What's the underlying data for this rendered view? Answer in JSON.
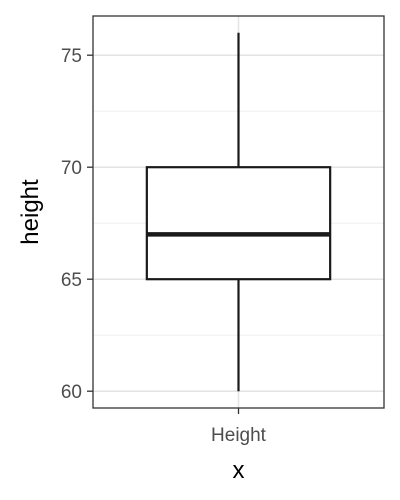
{
  "chart_data": {
    "type": "box",
    "xlabel": "x",
    "ylabel": "height",
    "categories": [
      "Height"
    ],
    "ylim": [
      59.25,
      76.75
    ],
    "yticks": [
      60,
      65,
      70,
      75
    ],
    "grid": true,
    "boxes": [
      {
        "category": "Height",
        "min": 60,
        "q1": 65,
        "median": 67,
        "q3": 70,
        "max": 76
      }
    ]
  }
}
